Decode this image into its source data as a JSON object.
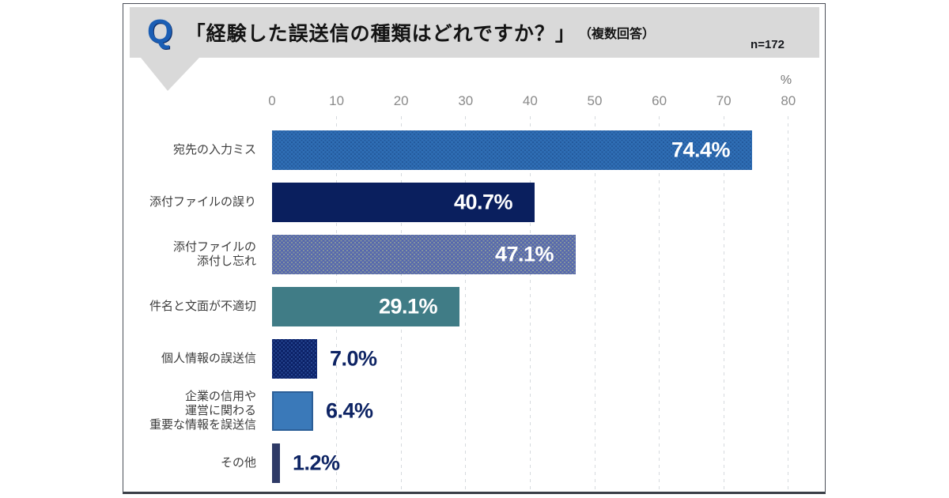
{
  "header": {
    "q_mark": "Q",
    "title": "「経験した誤送信の種類はどれですか？」",
    "subtitle": "（複数回答）",
    "sample_size": "n=172"
  },
  "axis": {
    "unit_label": "%",
    "ticks": [
      "0",
      "10",
      "20",
      "30",
      "40",
      "50",
      "60",
      "70",
      "80"
    ],
    "min": 0,
    "max": 80
  },
  "colors": {
    "bubble_bg": "#d9d9d9",
    "q_blue": "#1b5eb4",
    "panel_border": "#4a4e57",
    "tick_gray": "#8a8a8a",
    "category_gray": "#3d3d3d",
    "value_navy": "#0e2464",
    "value_white": "#ffffff",
    "grid_gray": "#d6dade"
  },
  "chart_data": {
    "type": "bar",
    "orientation": "horizontal",
    "title": "「経験した誤送信の種類はどれですか？」（複数回答）",
    "sample_size": "n=172",
    "xlabel": "%",
    "xlim": [
      0,
      80
    ],
    "grid": true,
    "legend": false,
    "categories": [
      "宛先の入力ミス",
      "添付ファイルの誤り",
      "添付ファイルの\n添付し忘れ",
      "件名と文面が不適切",
      "個人情報の誤送信",
      "企業の信用や\n運営に関わる\n重要な情報を誤送信",
      "その他"
    ],
    "values": [
      74.4,
      40.7,
      47.1,
      29.1,
      7.0,
      6.4,
      1.2
    ],
    "value_labels": [
      "74.4%",
      "40.7%",
      "47.1%",
      "29.1%",
      "7.0%",
      "6.4%",
      "1.2%"
    ],
    "bars": [
      {
        "color": "#2f6eb5",
        "texture": "dots",
        "dot_color": "rgba(9,40,90,0.28)",
        "label_position": "inside",
        "label_color": "#ffffff"
      },
      {
        "color": "#0a1f5e",
        "texture": "solid",
        "dot_color": null,
        "label_position": "inside",
        "label_color": "#ffffff"
      },
      {
        "color": "#5566ae",
        "texture": "dots",
        "dot_color": "rgba(180,195,140,0.5)",
        "label_position": "inside",
        "label_color": "#ffffff"
      },
      {
        "color": "#407c86",
        "texture": "solid",
        "dot_color": null,
        "label_position": "inside",
        "label_color": "#ffffff"
      },
      {
        "color": "#0b2166",
        "texture": "dots",
        "dot_color": "rgba(70,115,200,0.45)",
        "label_position": "outside",
        "label_color": "#0e2464"
      },
      {
        "color": "#3a79b9",
        "texture": "solid",
        "dot_color": null,
        "border": "#2b5e97",
        "label_position": "outside",
        "label_color": "#0e2464"
      },
      {
        "color": "#2e3a66",
        "texture": "solid",
        "dot_color": null,
        "label_position": "outside",
        "label_color": "#0e2464"
      }
    ]
  }
}
